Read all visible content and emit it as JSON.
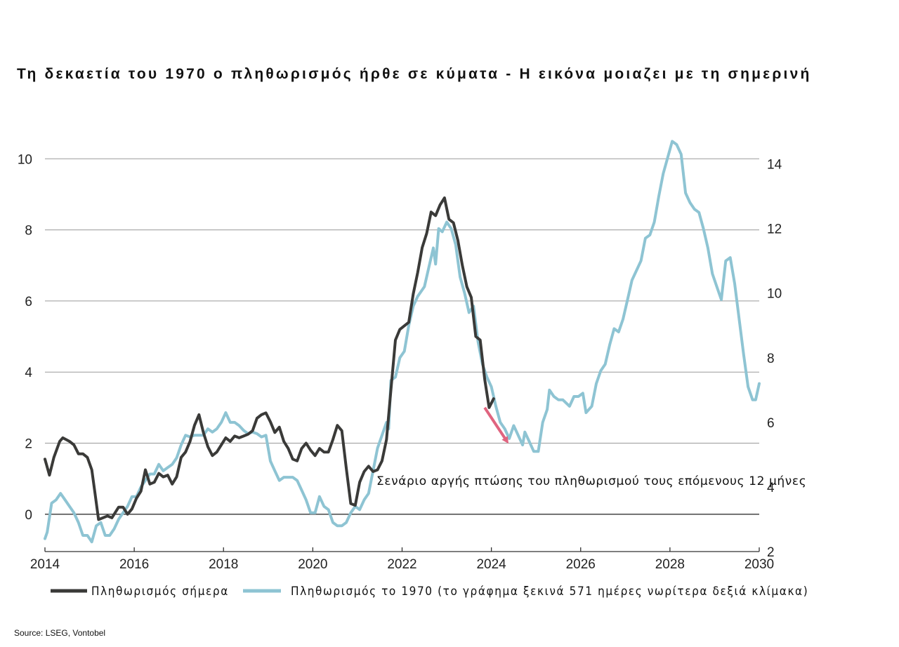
{
  "chart_data": {
    "type": "line",
    "title": "Τη δεκαετία του 1970 ο πληθωρισμός ήρθε σε κύματα - Η εικόνα μοιαζει με τη σημερινή",
    "source": "Source: LSEG, Vontobel",
    "annotation": "Σενάριο αργής πτώσης του πληθωρισμού τους επόμενους 12 μήνες",
    "x_axis": {
      "range": [
        2014,
        2030
      ],
      "ticks": [
        2014,
        2016,
        2018,
        2020,
        2022,
        2024,
        2026,
        2028,
        2030
      ]
    },
    "y_left": {
      "range": [
        -1.05,
        10.4
      ],
      "ticks": [
        0,
        2,
        4,
        6,
        8,
        10
      ]
    },
    "y_right": {
      "range": [
        2,
        14.6
      ],
      "ticks": [
        2,
        4,
        6,
        8,
        10,
        12,
        14
      ]
    },
    "grid": true,
    "legend_position": "bottom",
    "series": [
      {
        "name": "Πληθωρισμός σήμερα",
        "axis": "left",
        "color": "#3a3a38",
        "points": [
          [
            2014.0,
            1.55
          ],
          [
            2014.1,
            1.1
          ],
          [
            2014.2,
            1.6
          ],
          [
            2014.33,
            2.05
          ],
          [
            2014.4,
            2.15
          ],
          [
            2014.55,
            2.05
          ],
          [
            2014.65,
            1.95
          ],
          [
            2014.75,
            1.7
          ],
          [
            2014.85,
            1.7
          ],
          [
            2014.95,
            1.6
          ],
          [
            2015.05,
            1.25
          ],
          [
            2015.12,
            0.6
          ],
          [
            2015.2,
            -0.15
          ],
          [
            2015.3,
            -0.1
          ],
          [
            2015.4,
            -0.05
          ],
          [
            2015.5,
            -0.1
          ],
          [
            2015.65,
            0.2
          ],
          [
            2015.75,
            0.2
          ],
          [
            2015.85,
            0.0
          ],
          [
            2015.95,
            0.15
          ],
          [
            2016.05,
            0.45
          ],
          [
            2016.15,
            0.65
          ],
          [
            2016.25,
            1.25
          ],
          [
            2016.35,
            0.85
          ],
          [
            2016.45,
            0.9
          ],
          [
            2016.55,
            1.15
          ],
          [
            2016.65,
            1.05
          ],
          [
            2016.75,
            1.1
          ],
          [
            2016.85,
            0.85
          ],
          [
            2016.95,
            1.05
          ],
          [
            2017.05,
            1.6
          ],
          [
            2017.15,
            1.75
          ],
          [
            2017.25,
            2.05
          ],
          [
            2017.35,
            2.5
          ],
          [
            2017.45,
            2.8
          ],
          [
            2017.55,
            2.3
          ],
          [
            2017.65,
            1.9
          ],
          [
            2017.75,
            1.65
          ],
          [
            2017.85,
            1.75
          ],
          [
            2017.95,
            1.95
          ],
          [
            2018.05,
            2.15
          ],
          [
            2018.15,
            2.05
          ],
          [
            2018.25,
            2.2
          ],
          [
            2018.35,
            2.15
          ],
          [
            2018.45,
            2.2
          ],
          [
            2018.55,
            2.25
          ],
          [
            2018.65,
            2.35
          ],
          [
            2018.75,
            2.7
          ],
          [
            2018.85,
            2.8
          ],
          [
            2018.95,
            2.85
          ],
          [
            2019.05,
            2.6
          ],
          [
            2019.15,
            2.3
          ],
          [
            2019.25,
            2.45
          ],
          [
            2019.35,
            2.05
          ],
          [
            2019.45,
            1.85
          ],
          [
            2019.55,
            1.55
          ],
          [
            2019.65,
            1.5
          ],
          [
            2019.75,
            1.85
          ],
          [
            2019.85,
            2.0
          ],
          [
            2019.95,
            1.8
          ],
          [
            2020.05,
            1.65
          ],
          [
            2020.15,
            1.85
          ],
          [
            2020.25,
            1.75
          ],
          [
            2020.35,
            1.75
          ],
          [
            2020.45,
            2.1
          ],
          [
            2020.55,
            2.5
          ],
          [
            2020.65,
            2.35
          ],
          [
            2020.75,
            1.3
          ],
          [
            2020.85,
            0.3
          ],
          [
            2020.95,
            0.25
          ],
          [
            2021.05,
            0.9
          ],
          [
            2021.15,
            1.2
          ],
          [
            2021.25,
            1.35
          ],
          [
            2021.35,
            1.2
          ],
          [
            2021.45,
            1.25
          ],
          [
            2021.55,
            1.5
          ],
          [
            2021.65,
            2.1
          ],
          [
            2021.75,
            3.5
          ],
          [
            2021.85,
            4.9
          ],
          [
            2021.95,
            5.2
          ],
          [
            2022.05,
            5.3
          ],
          [
            2022.15,
            5.4
          ],
          [
            2022.25,
            6.2
          ],
          [
            2022.35,
            6.8
          ],
          [
            2022.45,
            7.5
          ],
          [
            2022.55,
            7.9
          ],
          [
            2022.65,
            8.5
          ],
          [
            2022.75,
            8.4
          ],
          [
            2022.85,
            8.7
          ],
          [
            2022.95,
            8.9
          ],
          [
            2023.05,
            8.3
          ],
          [
            2023.15,
            8.2
          ],
          [
            2023.25,
            7.7
          ],
          [
            2023.35,
            7.0
          ],
          [
            2023.45,
            6.4
          ],
          [
            2023.55,
            6.1
          ],
          [
            2023.65,
            5.0
          ],
          [
            2023.75,
            4.9
          ],
          [
            2023.85,
            3.8
          ],
          [
            2023.95,
            3.0
          ],
          [
            2024.05,
            3.25
          ]
        ]
      },
      {
        "name": "Πληθωρισμός το 1970 (το γράφημα ξεκινά 571 ημέρες νωρίτερα  δεξιά κλίμακα)",
        "axis": "right",
        "color": "#8ec4d3",
        "points": [
          [
            2014.0,
            2.4
          ],
          [
            2014.05,
            2.6
          ],
          [
            2014.15,
            3.5
          ],
          [
            2014.25,
            3.6
          ],
          [
            2014.35,
            3.8
          ],
          [
            2014.45,
            3.6
          ],
          [
            2014.55,
            3.4
          ],
          [
            2014.65,
            3.2
          ],
          [
            2014.75,
            2.9
          ],
          [
            2014.85,
            2.5
          ],
          [
            2014.95,
            2.5
          ],
          [
            2015.05,
            2.3
          ],
          [
            2015.15,
            2.8
          ],
          [
            2015.25,
            2.9
          ],
          [
            2015.35,
            2.5
          ],
          [
            2015.45,
            2.5
          ],
          [
            2015.55,
            2.7
          ],
          [
            2015.65,
            3.0
          ],
          [
            2015.75,
            3.2
          ],
          [
            2015.85,
            3.4
          ],
          [
            2015.95,
            3.7
          ],
          [
            2016.05,
            3.7
          ],
          [
            2016.15,
            4.0
          ],
          [
            2016.25,
            4.2
          ],
          [
            2016.35,
            4.4
          ],
          [
            2016.45,
            4.4
          ],
          [
            2016.55,
            4.7
          ],
          [
            2016.65,
            4.5
          ],
          [
            2016.75,
            4.6
          ],
          [
            2016.85,
            4.7
          ],
          [
            2016.95,
            4.9
          ],
          [
            2017.05,
            5.3
          ],
          [
            2017.15,
            5.6
          ],
          [
            2017.25,
            5.55
          ],
          [
            2017.35,
            5.6
          ],
          [
            2017.45,
            5.6
          ],
          [
            2017.55,
            5.6
          ],
          [
            2017.65,
            5.8
          ],
          [
            2017.75,
            5.7
          ],
          [
            2017.85,
            5.8
          ],
          [
            2017.95,
            6.0
          ],
          [
            2018.05,
            6.3
          ],
          [
            2018.15,
            6.0
          ],
          [
            2018.25,
            6.0
          ],
          [
            2018.35,
            5.9
          ],
          [
            2018.45,
            5.75
          ],
          [
            2018.55,
            5.65
          ],
          [
            2018.65,
            5.7
          ],
          [
            2018.75,
            5.65
          ],
          [
            2018.85,
            5.55
          ],
          [
            2018.95,
            5.6
          ],
          [
            2019.05,
            4.8
          ],
          [
            2019.15,
            4.5
          ],
          [
            2019.25,
            4.2
          ],
          [
            2019.35,
            4.3
          ],
          [
            2019.45,
            4.3
          ],
          [
            2019.55,
            4.3
          ],
          [
            2019.65,
            4.2
          ],
          [
            2019.75,
            3.9
          ],
          [
            2019.85,
            3.6
          ],
          [
            2019.95,
            3.2
          ],
          [
            2020.05,
            3.2
          ],
          [
            2020.15,
            3.7
          ],
          [
            2020.25,
            3.4
          ],
          [
            2020.35,
            3.3
          ],
          [
            2020.45,
            2.9
          ],
          [
            2020.55,
            2.8
          ],
          [
            2020.65,
            2.8
          ],
          [
            2020.75,
            2.9
          ],
          [
            2020.85,
            3.2
          ],
          [
            2020.95,
            3.4
          ],
          [
            2021.05,
            3.3
          ],
          [
            2021.15,
            3.6
          ],
          [
            2021.25,
            3.8
          ],
          [
            2021.35,
            4.5
          ],
          [
            2021.45,
            5.2
          ],
          [
            2021.55,
            5.6
          ],
          [
            2021.65,
            6.0
          ],
          [
            2021.7,
            5.8
          ],
          [
            2021.75,
            7.3
          ],
          [
            2021.85,
            7.4
          ],
          [
            2021.95,
            8.0
          ],
          [
            2022.05,
            8.2
          ],
          [
            2022.15,
            9.0
          ],
          [
            2022.25,
            9.6
          ],
          [
            2022.35,
            9.9
          ],
          [
            2022.45,
            10.1
          ],
          [
            2022.5,
            10.2
          ],
          [
            2022.6,
            10.8
          ],
          [
            2022.7,
            11.4
          ],
          [
            2022.75,
            10.9
          ],
          [
            2022.82,
            12.0
          ],
          [
            2022.9,
            11.9
          ],
          [
            2023.0,
            12.2
          ],
          [
            2023.1,
            12.0
          ],
          [
            2023.2,
            11.5
          ],
          [
            2023.3,
            10.5
          ],
          [
            2023.4,
            10.0
          ],
          [
            2023.5,
            9.4
          ],
          [
            2023.6,
            9.6
          ],
          [
            2023.7,
            8.5
          ],
          [
            2023.8,
            7.8
          ],
          [
            2023.9,
            7.4
          ],
          [
            2024.0,
            7.1
          ],
          [
            2024.1,
            6.5
          ],
          [
            2024.2,
            6.0
          ],
          [
            2024.3,
            5.8
          ],
          [
            2024.4,
            5.5
          ],
          [
            2024.5,
            5.9
          ],
          [
            2024.6,
            5.6
          ],
          [
            2024.7,
            5.3
          ],
          [
            2024.75,
            5.7
          ],
          [
            2024.85,
            5.4
          ],
          [
            2024.95,
            5.1
          ],
          [
            2025.05,
            5.1
          ],
          [
            2025.15,
            6.0
          ],
          [
            2025.25,
            6.4
          ],
          [
            2025.3,
            7.0
          ],
          [
            2025.4,
            6.8
          ],
          [
            2025.5,
            6.7
          ],
          [
            2025.6,
            6.7
          ],
          [
            2025.75,
            6.5
          ],
          [
            2025.85,
            6.8
          ],
          [
            2025.95,
            6.8
          ],
          [
            2026.05,
            6.9
          ],
          [
            2026.12,
            6.3
          ],
          [
            2026.25,
            6.5
          ],
          [
            2026.35,
            7.2
          ],
          [
            2026.45,
            7.6
          ],
          [
            2026.55,
            7.8
          ],
          [
            2026.65,
            8.4
          ],
          [
            2026.75,
            8.9
          ],
          [
            2026.85,
            8.8
          ],
          [
            2026.95,
            9.2
          ],
          [
            2027.05,
            9.8
          ],
          [
            2027.15,
            10.4
          ],
          [
            2027.25,
            10.7
          ],
          [
            2027.35,
            11.0
          ],
          [
            2027.45,
            11.7
          ],
          [
            2027.55,
            11.8
          ],
          [
            2027.65,
            12.2
          ],
          [
            2027.75,
            13.0
          ],
          [
            2027.85,
            13.7
          ],
          [
            2027.95,
            14.2
          ],
          [
            2028.05,
            14.7
          ],
          [
            2028.15,
            14.6
          ],
          [
            2028.25,
            14.3
          ],
          [
            2028.35,
            13.1
          ],
          [
            2028.45,
            12.8
          ],
          [
            2028.55,
            12.6
          ],
          [
            2028.65,
            12.5
          ],
          [
            2028.75,
            12.0
          ],
          [
            2028.85,
            11.4
          ],
          [
            2028.95,
            10.6
          ],
          [
            2029.05,
            10.2
          ],
          [
            2029.15,
            9.8
          ],
          [
            2029.25,
            11.0
          ],
          [
            2029.35,
            11.1
          ],
          [
            2029.45,
            10.3
          ],
          [
            2029.55,
            9.2
          ],
          [
            2029.65,
            8.1
          ],
          [
            2029.75,
            7.1
          ],
          [
            2029.85,
            6.7
          ],
          [
            2029.92,
            6.7
          ],
          [
            2030.0,
            7.2
          ]
        ]
      }
    ],
    "scenario_arrow": {
      "color": "#e0647f",
      "from": [
        2023.85,
        3.0
      ],
      "to": [
        2024.35,
        2.05
      ],
      "axis": "left"
    }
  }
}
